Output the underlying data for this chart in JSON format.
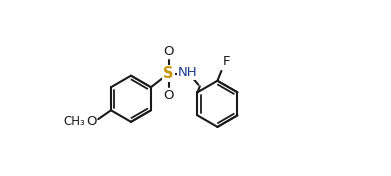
{
  "bg_color": "#ffffff",
  "line_color": "#1a1a1a",
  "S_color": "#c8960a",
  "N_color": "#1a3a8a",
  "O_color": "#1a1a1a",
  "F_color": "#1a1a1a",
  "lw": 1.5,
  "dlw": 1.3,
  "figsize": [
    3.91,
    1.76
  ],
  "dpi": 100,
  "font_size": 9.5,
  "xlim": [
    0.0,
    1.05
  ],
  "ylim": [
    0.05,
    0.95
  ]
}
